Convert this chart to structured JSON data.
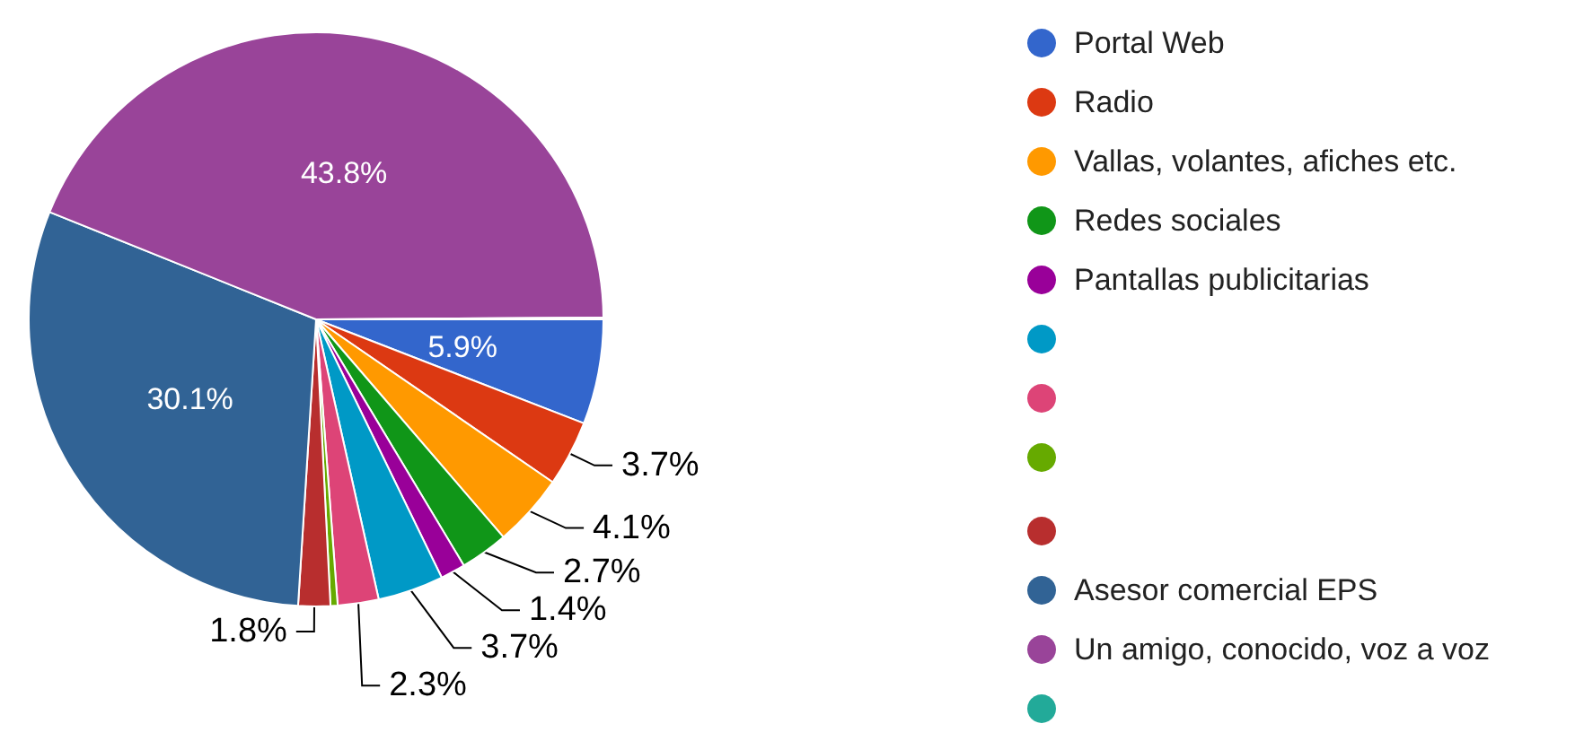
{
  "chart_data": {
    "type": "pie",
    "categories": [
      "Portal Web",
      "Radio",
      "Vallas, volantes, afiches etc.",
      "Redes sociales",
      "Pantallas publicitarias",
      null,
      null,
      null,
      null,
      "Asesor comercial EPS",
      "Un amigo, conocido, voz a voz",
      null
    ],
    "values": [
      5.9,
      3.7,
      4.1,
      2.7,
      1.4,
      3.7,
      2.3,
      0.4,
      1.8,
      30.1,
      43.8,
      0.1
    ],
    "colors": [
      "#3366cc",
      "#dc3912",
      "#ff9900",
      "#109618",
      "#990099",
      "#0099c6",
      "#dd4477",
      "#66aa00",
      "#b82e2e",
      "#316395",
      "#994499",
      "#22aa99"
    ],
    "value_labels": [
      "5.9%",
      "3.7%",
      "4.1%",
      "2.7%",
      "1.4%",
      "3.7%",
      "2.3%",
      null,
      "1.8%",
      "30.1%",
      "43.8%",
      null
    ],
    "legend": "right"
  }
}
